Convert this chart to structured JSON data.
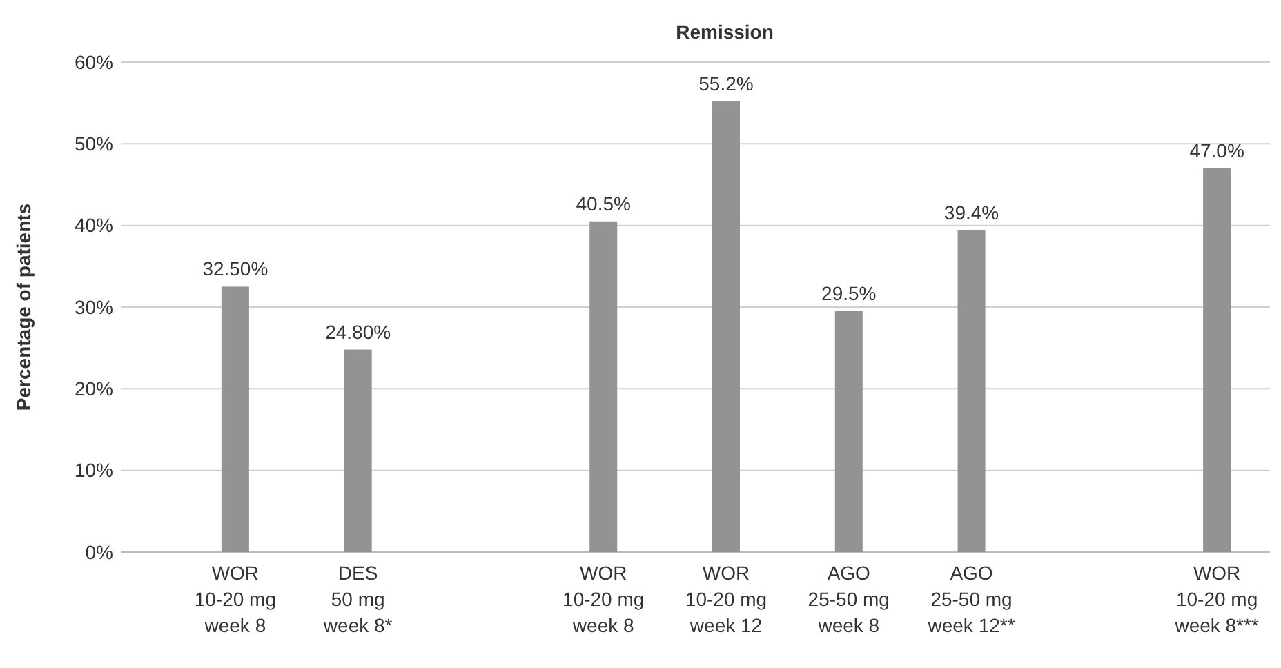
{
  "chart_data": {
    "type": "bar",
    "title": "Remission",
    "ylabel": "Percentage of patients",
    "categories": [
      "WOR\n10-20 mg\nweek 8",
      "DES\n50 mg\nweek 8*",
      null,
      "WOR\n10-20 mg\nweek 8",
      "WOR\n10-20 mg\nweek 12",
      "AGO\n25-50 mg\nweek 8",
      "AGO\n25-50 mg\nweek 12**",
      null,
      "WOR\n10-20 mg\nweek 8***"
    ],
    "values": [
      32.5,
      24.8,
      null,
      40.5,
      55.2,
      29.5,
      39.4,
      null,
      47.0
    ],
    "value_labels": [
      "32.50%",
      "24.80%",
      null,
      "40.5%",
      "55.2%",
      "29.5%",
      "39.4%",
      null,
      "47.0%"
    ],
    "color": "#939393",
    "ylim": [
      0,
      60
    ],
    "yticks": [
      {
        "value": 0,
        "label": "0%"
      },
      {
        "value": 10,
        "label": "10%"
      },
      {
        "value": 20,
        "label": "20%"
      },
      {
        "value": 30,
        "label": "30%"
      },
      {
        "value": 40,
        "label": "40%"
      },
      {
        "value": 50,
        "label": "50%"
      },
      {
        "value": 60,
        "label": "60%"
      }
    ],
    "grid": "y"
  }
}
